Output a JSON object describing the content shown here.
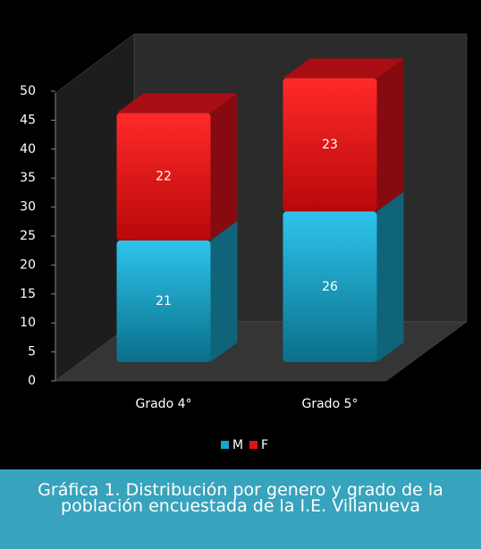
{
  "chart_data": {
    "type": "bar",
    "stacked": true,
    "title": "Gráfica 1. Distribución por genero y grado de la población encuestada de la I.E. Villanueva",
    "categories": [
      "Grado 4°",
      "Grado 5°"
    ],
    "series": [
      {
        "name": "M",
        "color": "#1aa6cc",
        "values": [
          21,
          26
        ]
      },
      {
        "name": "F",
        "color": "#e0131a",
        "values": [
          22,
          23
        ]
      }
    ],
    "ylim": [
      0,
      50
    ],
    "yticks": [
      0,
      5,
      10,
      15,
      20,
      25,
      30,
      35,
      40,
      45,
      50
    ],
    "legend": "bottom"
  }
}
